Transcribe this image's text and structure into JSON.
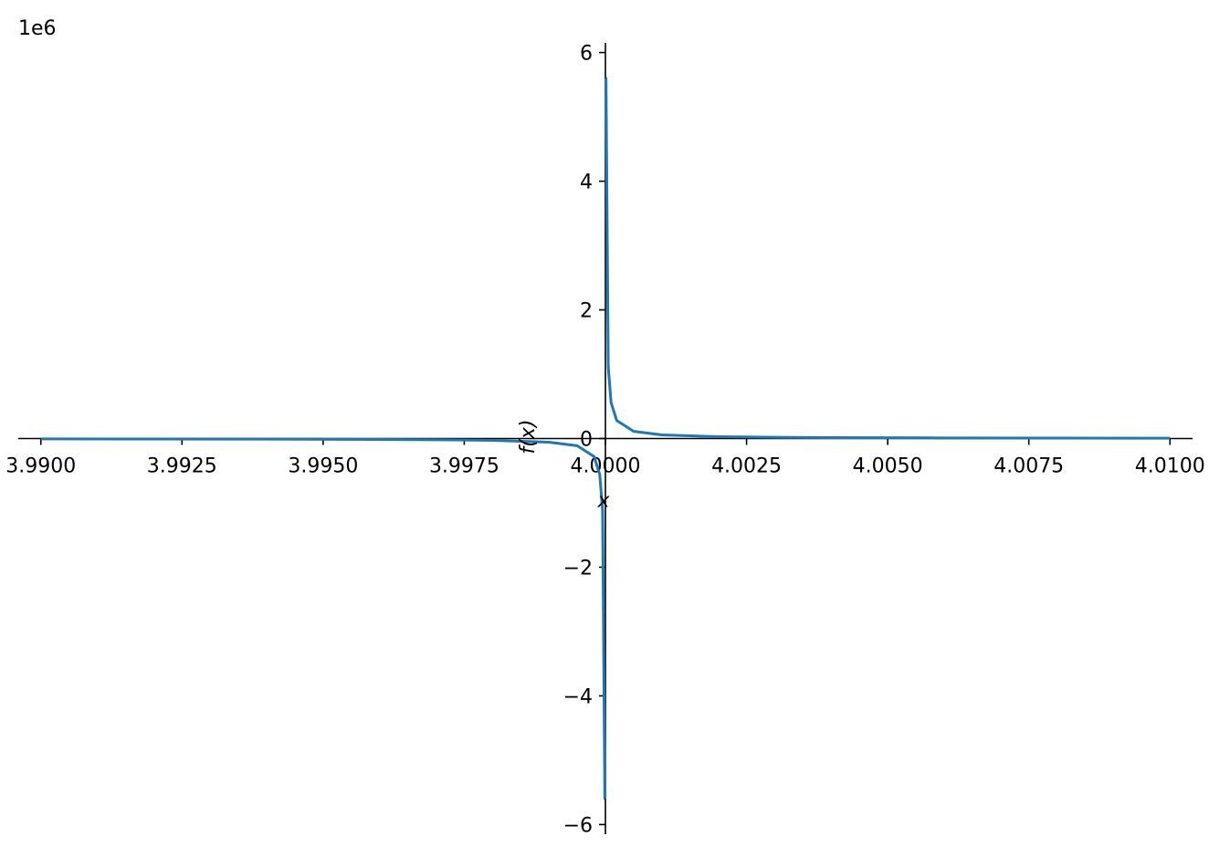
{
  "chart_data": {
    "type": "line",
    "title": "",
    "xlabel": "x",
    "ylabel": "f(x)",
    "offset_text": "1e6",
    "xlim": [
      3.9896,
      4.0104
    ],
    "ylim": [
      -6.15,
      6.15
    ],
    "x_ticks": [
      3.99,
      3.9925,
      3.995,
      3.9975,
      4.0,
      4.0025,
      4.005,
      4.0075,
      4.01
    ],
    "x_tick_labels": [
      "3.9900",
      "3.9925",
      "3.9950",
      "3.9975",
      "4.0000",
      "4.0025",
      "4.0050",
      "4.0075",
      "4.0100"
    ],
    "y_ticks": [
      -6,
      -4,
      -2,
      0,
      2,
      4,
      6
    ],
    "y_tick_labels": [
      "−6",
      "−4",
      "−2",
      "0",
      "2",
      "4",
      "6"
    ],
    "grid": false,
    "series": [
      {
        "color": "#1f77b4",
        "x": [
          3.99,
          3.992,
          3.994,
          3.996,
          3.997,
          3.998,
          3.999,
          3.9995,
          3.9998,
          3.9999,
          3.99995,
          3.99999,
          3.999993,
          4.000007,
          4.00001,
          4.00005,
          4.0001,
          4.0002,
          4.0005,
          4.001,
          4.002,
          4.003,
          4.004,
          4.006,
          4.008,
          4.01
        ],
        "y": [
          -0.0056,
          -0.007,
          -0.0093,
          -0.014,
          -0.0187,
          -0.028,
          -0.056,
          -0.112,
          -0.28,
          -0.56,
          -1.12,
          -5.6,
          -5.6,
          5.6,
          5.6,
          1.12,
          0.56,
          0.28,
          0.112,
          0.056,
          0.028,
          0.0187,
          0.014,
          0.0093,
          0.007,
          0.0056
        ]
      }
    ]
  }
}
